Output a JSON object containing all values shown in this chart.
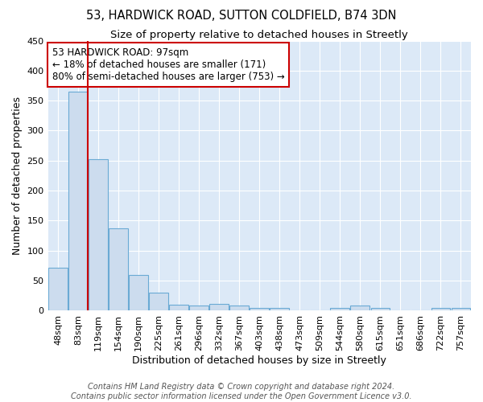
{
  "title": "53, HARDWICK ROAD, SUTTON COLDFIELD, B74 3DN",
  "subtitle": "Size of property relative to detached houses in Streetly",
  "xlabel": "Distribution of detached houses by size in Streetly",
  "ylabel": "Number of detached properties",
  "bar_labels": [
    "48sqm",
    "83sqm",
    "119sqm",
    "154sqm",
    "190sqm",
    "225sqm",
    "261sqm",
    "296sqm",
    "332sqm",
    "367sqm",
    "403sqm",
    "438sqm",
    "473sqm",
    "509sqm",
    "544sqm",
    "580sqm",
    "615sqm",
    "651sqm",
    "686sqm",
    "722sqm",
    "757sqm"
  ],
  "bar_values": [
    72,
    365,
    252,
    137,
    59,
    30,
    10,
    8,
    11,
    8,
    4,
    5,
    0,
    0,
    5,
    9,
    4,
    1,
    0,
    4,
    4
  ],
  "bar_color": "#ccdcee",
  "bar_edge_color": "#6aaad4",
  "bar_edge_width": 0.8,
  "red_line_color": "#cc0000",
  "red_line_bar_index": 1,
  "annotation_text": "53 HARDWICK ROAD: 97sqm\n← 18% of detached houses are smaller (171)\n80% of semi-detached houses are larger (753) →",
  "annotation_box_color": "white",
  "annotation_box_edge": "#cc0000",
  "ylim": [
    0,
    450
  ],
  "yticks": [
    0,
    50,
    100,
    150,
    200,
    250,
    300,
    350,
    400,
    450
  ],
  "bg_color": "#dce9f7",
  "grid_color": "white",
  "footer_line1": "Contains HM Land Registry data © Crown copyright and database right 2024.",
  "footer_line2": "Contains public sector information licensed under the Open Government Licence v3.0.",
  "title_fontsize": 10.5,
  "subtitle_fontsize": 9.5,
  "axis_label_fontsize": 9,
  "tick_fontsize": 8,
  "annotation_fontsize": 8.5,
  "footer_fontsize": 7
}
